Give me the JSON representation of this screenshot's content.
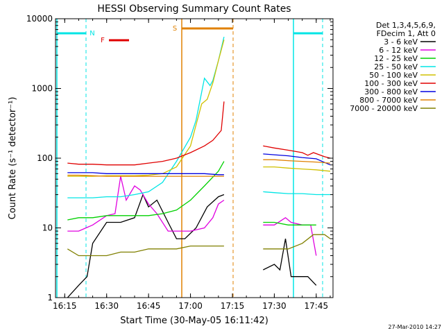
{
  "chart_data": {
    "type": "line",
    "title": "HESSI Observing Summary Count Rates",
    "xlabel": "Start Time (30-May-05 16:11:42)",
    "ylabel": "Count Rate (s⁻¹ detector⁻¹)",
    "yscale": "log",
    "ylim": [
      1,
      10000
    ],
    "xlim_minutes": [
      971.7,
      1071.0
    ],
    "x_ticks": [
      "16:15",
      "16:30",
      "16:45",
      "17:00",
      "17:15",
      "17:30",
      "17:45"
    ],
    "y_ticks": [
      "1",
      "10",
      "100",
      "1000",
      "10000"
    ],
    "legend_header": [
      "Det 1,3,4,5,6,9,",
      "FDecim 1, Att 0"
    ],
    "legend_position": "right",
    "footer_date": "27-Mar-2010 14:27",
    "flags": [
      {
        "label": "N",
        "color": "#00e5e5"
      },
      {
        "label": "F",
        "color": "#e00000"
      },
      {
        "label": "S",
        "color": "#e08000"
      }
    ],
    "series": [
      {
        "name": "3 - 6 keV",
        "color": "#000000",
        "points": [
          [
            976,
            1
          ],
          [
            980,
            1.5
          ],
          [
            983,
            2
          ],
          [
            985,
            6
          ],
          [
            990,
            12
          ],
          [
            995,
            12
          ],
          [
            1000,
            14
          ],
          [
            1003,
            30
          ],
          [
            1005,
            20
          ],
          [
            1008,
            25
          ],
          [
            1012,
            12
          ],
          [
            1015,
            7
          ],
          [
            1018,
            7
          ],
          [
            1022,
            10
          ],
          [
            1026,
            20
          ],
          [
            1030,
            28
          ],
          [
            1032,
            30
          ],
          [
            1046,
            2.5
          ],
          [
            1050,
            3
          ],
          [
            1052,
            2.5
          ],
          [
            1054,
            7
          ],
          [
            1056,
            2
          ],
          [
            1058,
            2
          ],
          [
            1062,
            2
          ],
          [
            1065,
            1.5
          ]
        ]
      },
      {
        "name": "6 - 12 keV",
        "color": "#e000e0",
        "points": [
          [
            976,
            9
          ],
          [
            980,
            9
          ],
          [
            985,
            11
          ],
          [
            990,
            15
          ],
          [
            993,
            16
          ],
          [
            995,
            55
          ],
          [
            997,
            25
          ],
          [
            1000,
            40
          ],
          [
            1002,
            35
          ],
          [
            1005,
            22
          ],
          [
            1008,
            16
          ],
          [
            1012,
            9
          ],
          [
            1015,
            9
          ],
          [
            1020,
            9
          ],
          [
            1025,
            10
          ],
          [
            1028,
            14
          ],
          [
            1030,
            22
          ],
          [
            1032,
            25
          ],
          [
            1046,
            11
          ],
          [
            1050,
            11
          ],
          [
            1054,
            14
          ],
          [
            1056,
            12
          ],
          [
            1060,
            11
          ],
          [
            1063,
            11
          ],
          [
            1065,
            4
          ]
        ]
      },
      {
        "name": "12 - 25 keV",
        "color": "#00d000",
        "points": [
          [
            976,
            13
          ],
          [
            980,
            14
          ],
          [
            985,
            14
          ],
          [
            990,
            15
          ],
          [
            995,
            15
          ],
          [
            1000,
            15
          ],
          [
            1005,
            15
          ],
          [
            1010,
            16
          ],
          [
            1015,
            18
          ],
          [
            1020,
            25
          ],
          [
            1025,
            40
          ],
          [
            1030,
            65
          ],
          [
            1032,
            90
          ],
          [
            1046,
            12
          ],
          [
            1050,
            12
          ],
          [
            1055,
            11
          ],
          [
            1060,
            11
          ],
          [
            1065,
            11
          ]
        ]
      },
      {
        "name": "25 - 50 keV",
        "color": "#00e5e5",
        "points": [
          [
            976,
            27
          ],
          [
            980,
            27
          ],
          [
            985,
            27
          ],
          [
            990,
            28
          ],
          [
            995,
            28
          ],
          [
            1000,
            30
          ],
          [
            1005,
            33
          ],
          [
            1010,
            45
          ],
          [
            1015,
            90
          ],
          [
            1020,
            200
          ],
          [
            1022,
            350
          ],
          [
            1025,
            1400
          ],
          [
            1027,
            1100
          ],
          [
            1028,
            1300
          ],
          [
            1030,
            2500
          ],
          [
            1032,
            5500
          ],
          [
            1046,
            33
          ],
          [
            1050,
            32
          ],
          [
            1055,
            31
          ],
          [
            1060,
            31
          ],
          [
            1065,
            30
          ],
          [
            1070,
            30
          ]
        ]
      },
      {
        "name": "50 - 100 keV",
        "color": "#d0c000",
        "points": [
          [
            976,
            55
          ],
          [
            980,
            55
          ],
          [
            985,
            55
          ],
          [
            990,
            56
          ],
          [
            995,
            56
          ],
          [
            1000,
            56
          ],
          [
            1005,
            57
          ],
          [
            1010,
            60
          ],
          [
            1015,
            75
          ],
          [
            1020,
            150
          ],
          [
            1022,
            300
          ],
          [
            1024,
            600
          ],
          [
            1026,
            700
          ],
          [
            1028,
            1200
          ],
          [
            1030,
            2500
          ],
          [
            1032,
            5000
          ],
          [
            1046,
            75
          ],
          [
            1050,
            75
          ],
          [
            1055,
            72
          ],
          [
            1060,
            70
          ],
          [
            1065,
            68
          ],
          [
            1070,
            65
          ]
        ]
      },
      {
        "name": "100 - 300 keV",
        "color": "#e00000",
        "points": [
          [
            976,
            85
          ],
          [
            980,
            82
          ],
          [
            985,
            82
          ],
          [
            990,
            80
          ],
          [
            995,
            80
          ],
          [
            1000,
            80
          ],
          [
            1005,
            85
          ],
          [
            1010,
            90
          ],
          [
            1015,
            100
          ],
          [
            1020,
            120
          ],
          [
            1025,
            150
          ],
          [
            1028,
            180
          ],
          [
            1031,
            250
          ],
          [
            1032,
            650
          ],
          [
            1046,
            150
          ],
          [
            1050,
            140
          ],
          [
            1055,
            130
          ],
          [
            1060,
            120
          ],
          [
            1062,
            110
          ],
          [
            1064,
            120
          ],
          [
            1068,
            105
          ],
          [
            1070,
            100
          ]
        ]
      },
      {
        "name": "300 - 800 keV",
        "color": "#0000e0",
        "points": [
          [
            976,
            62
          ],
          [
            980,
            62
          ],
          [
            985,
            62
          ],
          [
            990,
            60
          ],
          [
            995,
            60
          ],
          [
            1000,
            60
          ],
          [
            1005,
            60
          ],
          [
            1010,
            60
          ],
          [
            1015,
            60
          ],
          [
            1020,
            60
          ],
          [
            1025,
            60
          ],
          [
            1030,
            58
          ],
          [
            1032,
            58
          ],
          [
            1046,
            115
          ],
          [
            1050,
            112
          ],
          [
            1055,
            108
          ],
          [
            1060,
            102
          ],
          [
            1065,
            98
          ],
          [
            1070,
            80
          ]
        ]
      },
      {
        "name": "800 - 7000 keV",
        "color": "#e08000",
        "points": [
          [
            976,
            57
          ],
          [
            980,
            57
          ],
          [
            985,
            56
          ],
          [
            990,
            55
          ],
          [
            995,
            55
          ],
          [
            1000,
            55
          ],
          [
            1005,
            55
          ],
          [
            1010,
            55
          ],
          [
            1015,
            55
          ],
          [
            1020,
            55
          ],
          [
            1025,
            55
          ],
          [
            1030,
            55
          ],
          [
            1032,
            55
          ],
          [
            1046,
            95
          ],
          [
            1050,
            95
          ],
          [
            1055,
            92
          ],
          [
            1060,
            90
          ],
          [
            1065,
            88
          ],
          [
            1070,
            85
          ]
        ]
      },
      {
        "name": "7000 - 20000 keV",
        "color": "#808000",
        "points": [
          [
            976,
            5
          ],
          [
            980,
            4
          ],
          [
            985,
            4
          ],
          [
            990,
            4
          ],
          [
            995,
            4.5
          ],
          [
            1000,
            4.5
          ],
          [
            1005,
            5
          ],
          [
            1010,
            5
          ],
          [
            1015,
            5
          ],
          [
            1020,
            5.5
          ],
          [
            1025,
            5.5
          ],
          [
            1030,
            5.5
          ],
          [
            1032,
            5.5
          ],
          [
            1046,
            5
          ],
          [
            1050,
            5
          ],
          [
            1055,
            5
          ],
          [
            1060,
            6
          ],
          [
            1064,
            8
          ],
          [
            1068,
            8
          ],
          [
            1070,
            7
          ]
        ]
      }
    ]
  }
}
